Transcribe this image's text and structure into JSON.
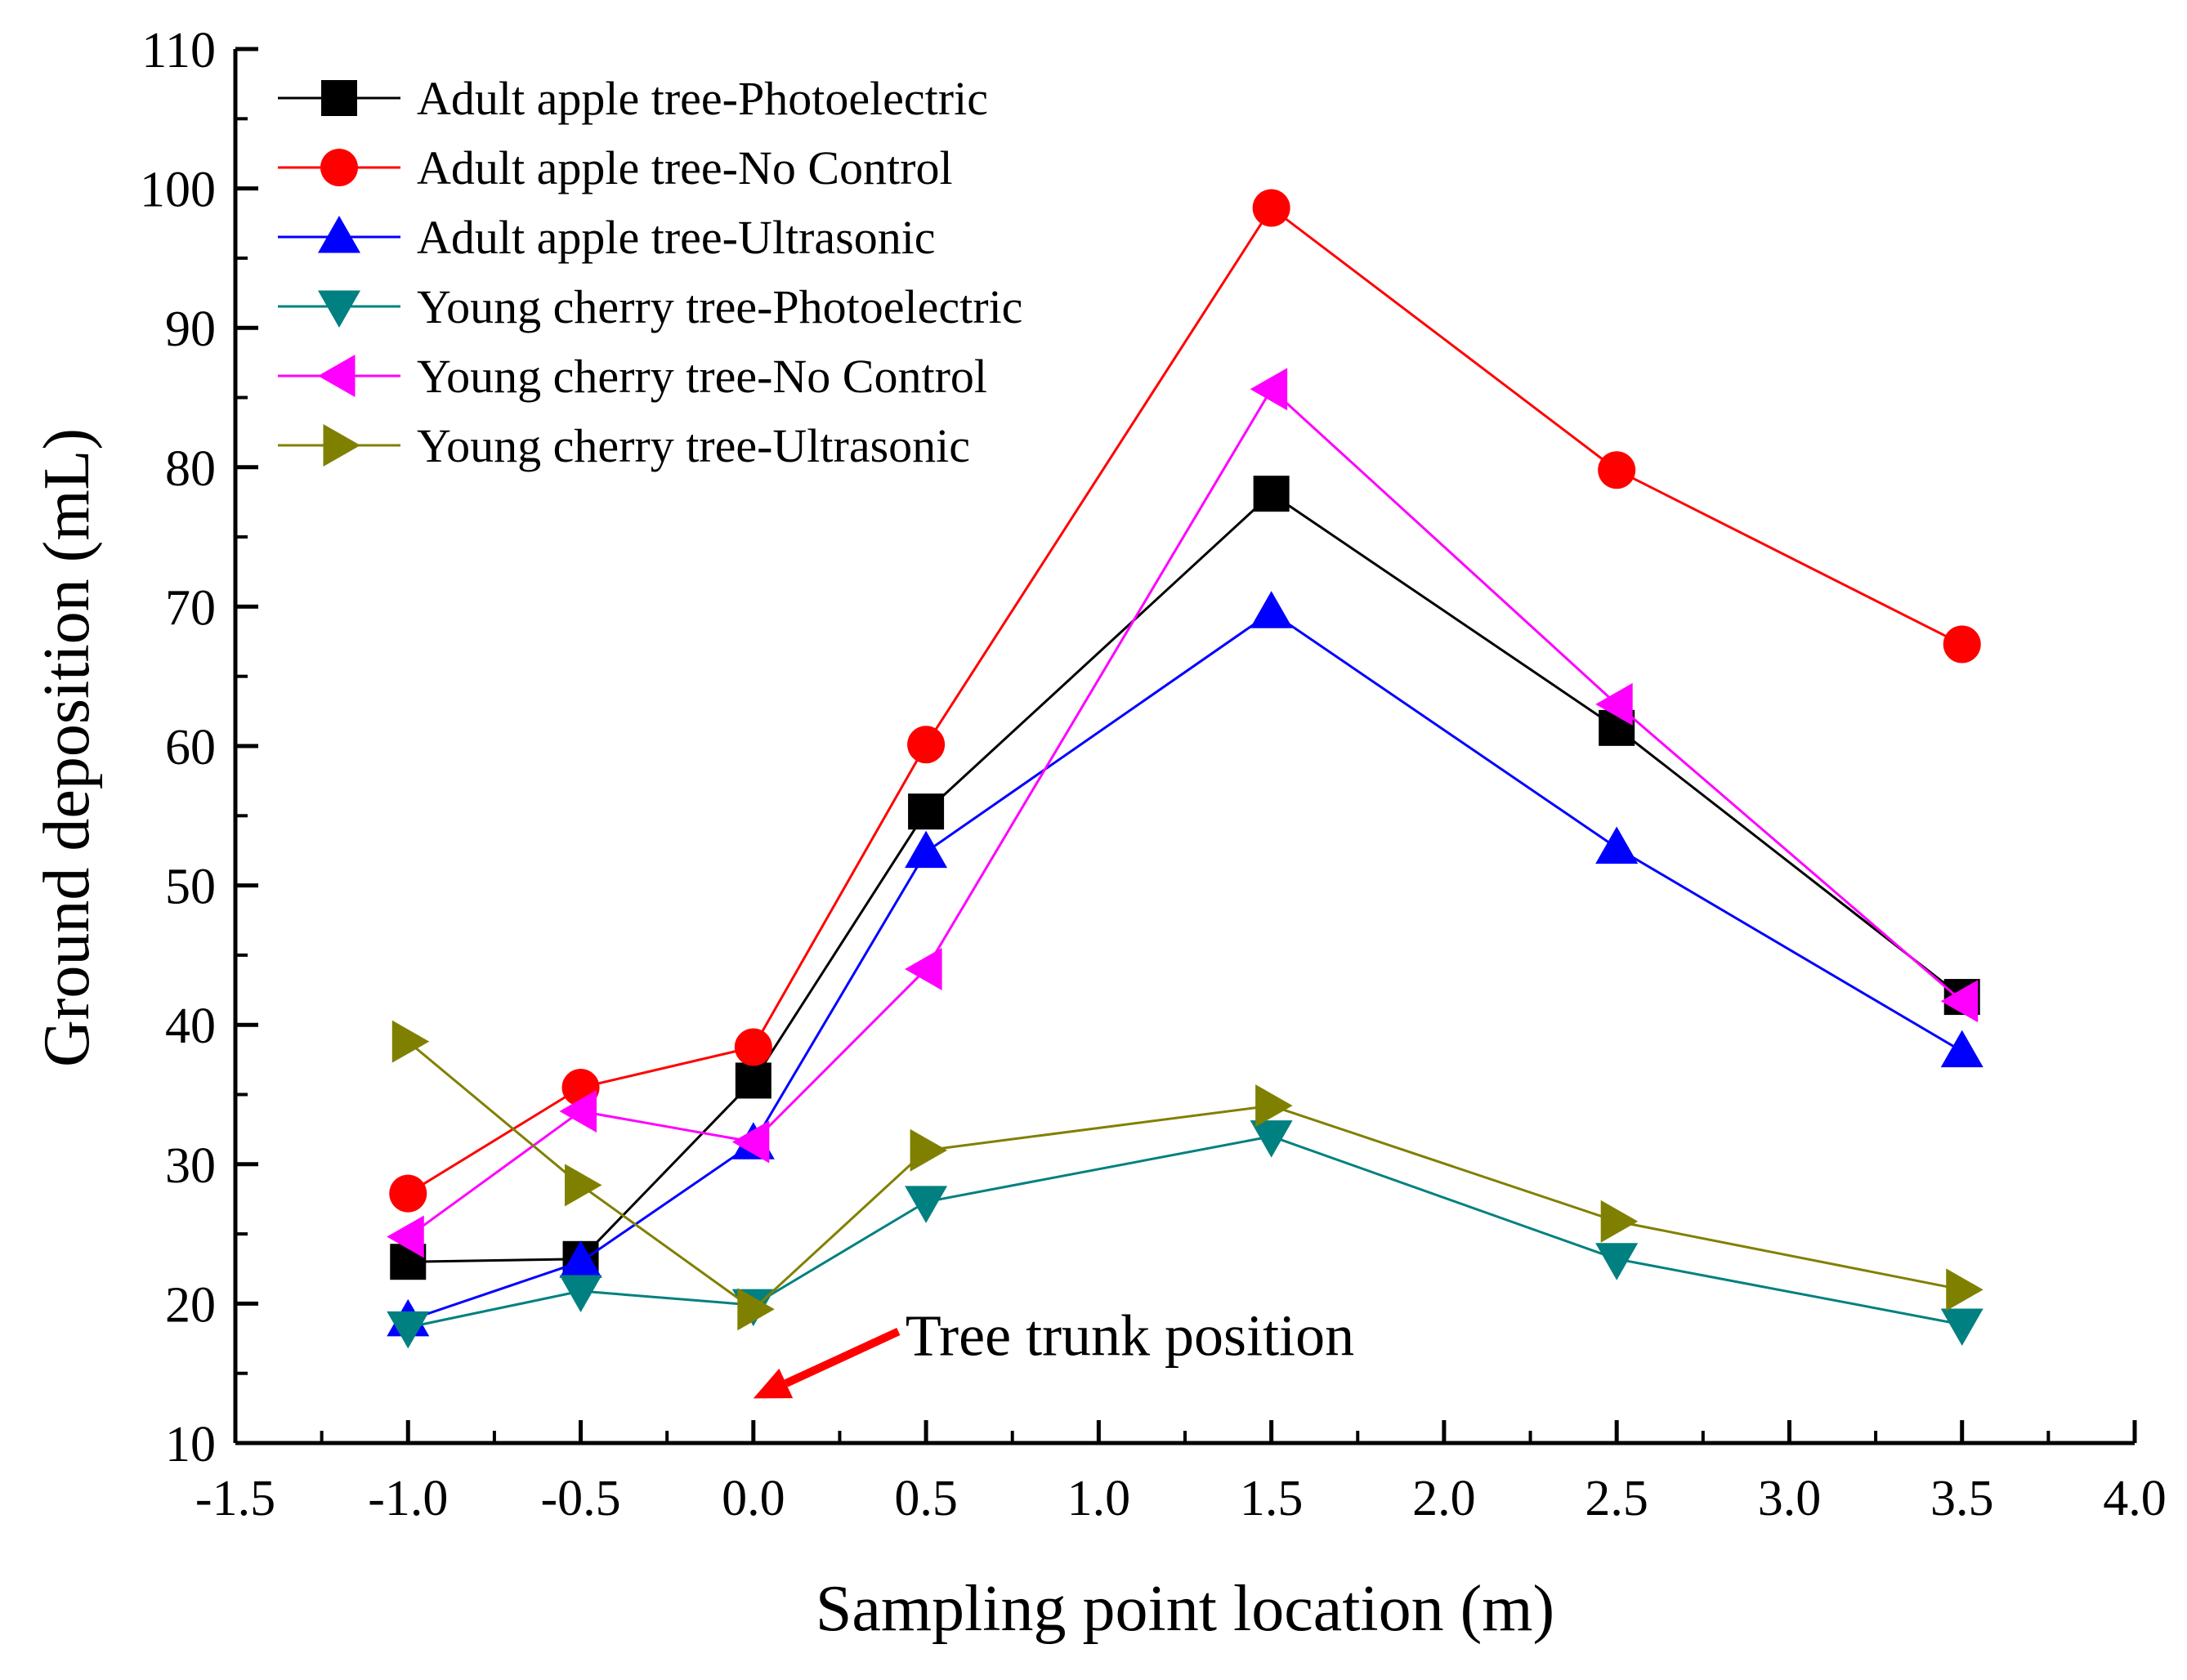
{
  "chart_data": {
    "type": "line",
    "title": "",
    "xlabel": "Sampling point location (m)",
    "ylabel": "Ground deposition (mL)",
    "xlim": [
      -1.5,
      4.0
    ],
    "ylim": [
      10,
      110
    ],
    "xticks": [
      -1.5,
      -1.0,
      -0.5,
      0.0,
      0.5,
      1.0,
      1.5,
      2.0,
      2.5,
      3.0,
      3.5,
      4.0
    ],
    "xtick_labels": [
      "-1.5",
      "-1.0",
      "-0.5",
      "0.0",
      "0.5",
      "1.0",
      "1.5",
      "2.0",
      "2.5",
      "3.0",
      "3.5",
      "4.0"
    ],
    "yticks": [
      10,
      20,
      30,
      40,
      50,
      60,
      70,
      80,
      90,
      100,
      110
    ],
    "ytick_labels": [
      "10",
      "20",
      "30",
      "40",
      "50",
      "60",
      "70",
      "80",
      "90",
      "100",
      "110"
    ],
    "grid": false,
    "legend_position": "top-left",
    "x": [
      -1.0,
      -0.5,
      0.0,
      0.5,
      1.5,
      2.5,
      3.5
    ],
    "series": [
      {
        "name": "Adult apple tree-Photoelectric",
        "color": "#000000",
        "marker": "square",
        "values": [
          23.0,
          23.2,
          36.0,
          55.3,
          78.1,
          61.3,
          42.0
        ]
      },
      {
        "name": "Adult apple tree-No Control",
        "color": "#ff0000",
        "marker": "circle",
        "values": [
          27.9,
          35.5,
          38.4,
          60.1,
          98.6,
          79.8,
          67.3
        ]
      },
      {
        "name": "Adult apple tree-Ultrasonic",
        "color": "#0000ff",
        "marker": "triangle-up",
        "values": [
          18.8,
          23.0,
          31.5,
          52.4,
          69.6,
          52.7,
          38.1
        ]
      },
      {
        "name": "Young cherry tree-Photoelectric",
        "color": "#008080",
        "marker": "triangle-down",
        "values": [
          18.3,
          20.9,
          19.9,
          27.3,
          32.0,
          23.2,
          18.5
        ]
      },
      {
        "name": "Young cherry tree-No Control",
        "color": "#ff00ff",
        "marker": "triangle-left",
        "values": [
          24.8,
          33.8,
          31.6,
          44.0,
          85.6,
          63.0,
          41.7
        ]
      },
      {
        "name": "Young cherry tree-Ultrasonic",
        "color": "#808000",
        "marker": "triangle-right",
        "values": [
          38.8,
          28.5,
          19.6,
          31.0,
          34.2,
          25.9,
          21.0
        ]
      }
    ],
    "annotation": {
      "text": "Tree trunk position",
      "color": "#ff0000",
      "arrow_from": [
        0.42,
        18.0
      ],
      "arrow_to": [
        0.0,
        13.2
      ],
      "text_at": [
        0.44,
        17.7
      ]
    }
  }
}
